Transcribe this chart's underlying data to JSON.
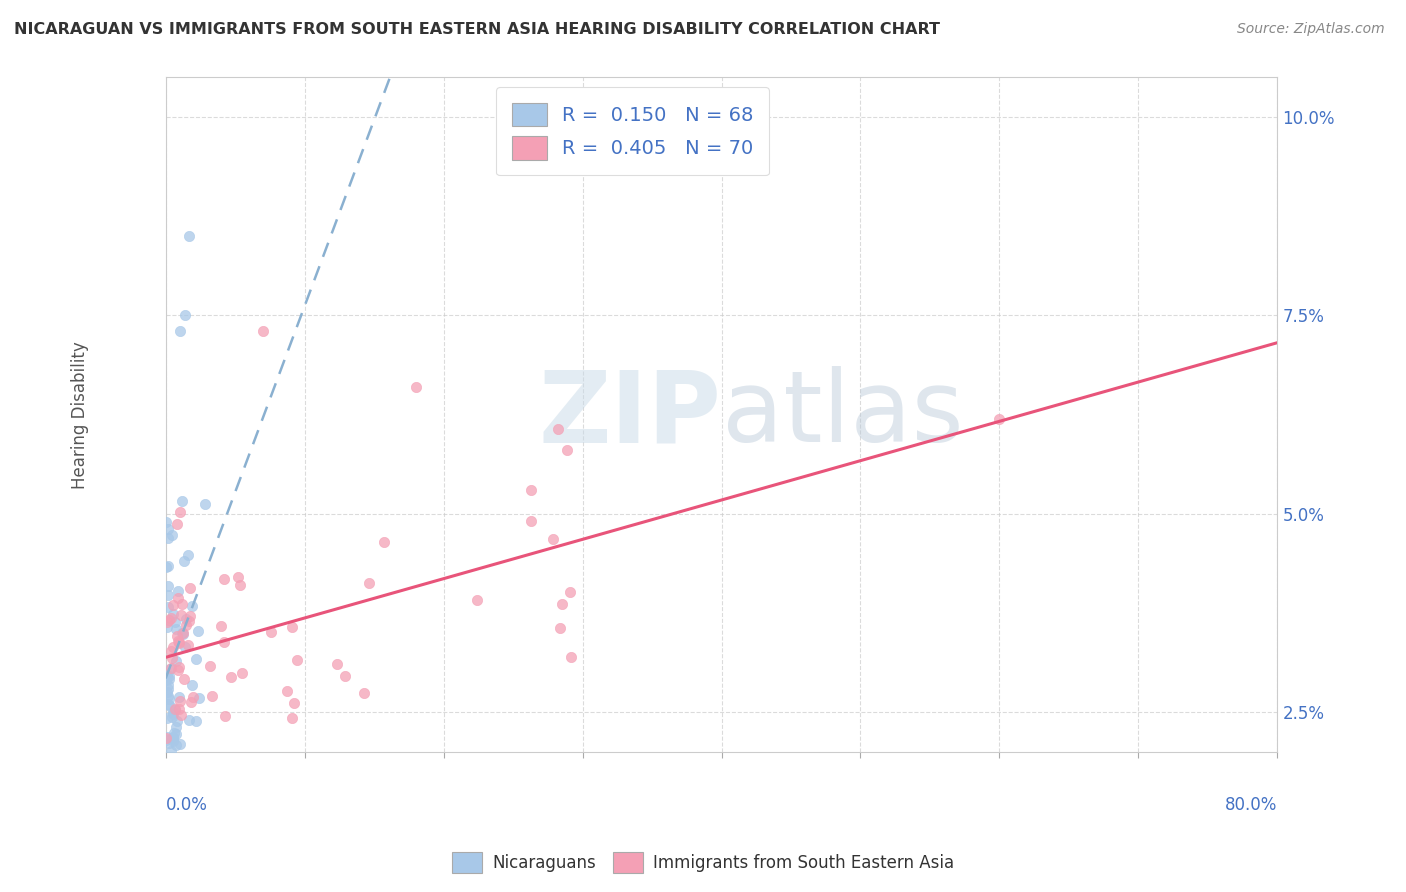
{
  "title": "NICARAGUAN VS IMMIGRANTS FROM SOUTH EASTERN ASIA HEARING DISABILITY CORRELATION CHART",
  "source": "Source: ZipAtlas.com",
  "ylabel": "Hearing Disability",
  "legend_label1": "Nicaraguans",
  "legend_label2": "Immigrants from South Eastern Asia",
  "blue_color": "#a8c8e8",
  "pink_color": "#f4a0b5",
  "blue_line_color": "#5b9bd5",
  "pink_line_color": "#e8547a",
  "dot_size": 55,
  "blue_R": 0.15,
  "blue_N": 68,
  "pink_R": 0.405,
  "pink_N": 70,
  "xlim": [
    0.0,
    0.8
  ],
  "ylim": [
    0.02,
    0.105
  ],
  "ytick_vals": [
    0.025,
    0.05,
    0.075,
    0.1
  ],
  "ytick_labels": [
    "2.5%",
    "5.0%",
    "7.5%",
    "10.0%"
  ],
  "background_color": "#ffffff",
  "grid_color": "#cccccc",
  "legend_text_color": "#4472c4",
  "tick_color": "#4472c4",
  "title_color": "#333333",
  "source_color": "#888888",
  "watermark_text": "ZIPAtlas",
  "watermark_color": "#d0dde8"
}
